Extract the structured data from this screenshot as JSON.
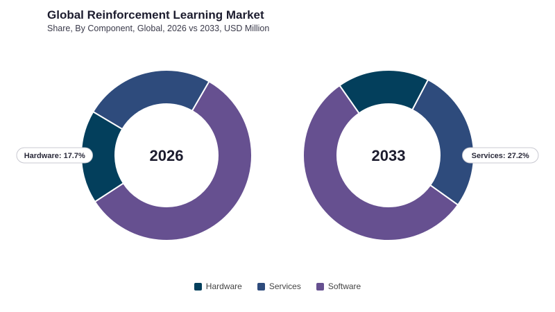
{
  "chart_data": {
    "type": "pie",
    "title": "Global Reinforcement Learning Market",
    "subtitle": "Share, By Component, Global, 2026 vs 2033, USD Million",
    "categories": [
      "Hardware",
      "Services",
      "Software"
    ],
    "colors": {
      "Hardware": "#033f5c",
      "Services": "#2e4b7c",
      "Software": "#665090"
    },
    "charts": [
      {
        "label": "2026",
        "slices": [
          {
            "name": "Hardware",
            "value": 17.7
          },
          {
            "name": "Services",
            "value": 24.8
          },
          {
            "name": "Software",
            "value": 57.5
          }
        ],
        "callout": {
          "category": "Hardware",
          "text": "Hardware: 17.7%"
        }
      },
      {
        "label": "2033",
        "slices": [
          {
            "name": "Hardware",
            "value": 17.4
          },
          {
            "name": "Services",
            "value": 27.2
          },
          {
            "name": "Software",
            "value": 55.4
          }
        ],
        "callout": {
          "category": "Services",
          "text": "Services: 27.2%"
        }
      }
    ],
    "legend_position": "bottom"
  }
}
